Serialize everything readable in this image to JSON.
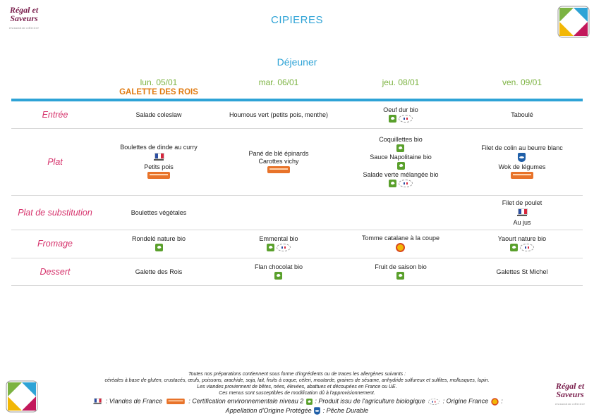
{
  "header": {
    "title": "CIPIERES",
    "meal": "Déjeuner",
    "logo_line1": "Régal et",
    "logo_line2": "Saveurs",
    "logo_tag": "restauration collective"
  },
  "days": [
    {
      "name": "lun. 05/01",
      "special": "GALETTE DES ROIS"
    },
    {
      "name": "mar. 06/01",
      "special": ""
    },
    {
      "name": "jeu. 08/01",
      "special": ""
    },
    {
      "name": "ven. 09/01",
      "special": ""
    }
  ],
  "categories": {
    "entree": "Entrée",
    "plat": "Plat",
    "substitution": "Plat de substitution",
    "fromage": "Fromage",
    "dessert": "Dessert"
  },
  "menu": {
    "entree": [
      [
        {
          "name": "Salade coleslaw",
          "labels": []
        }
      ],
      [
        {
          "name": "Houmous vert (petits pois, menthe)",
          "labels": []
        }
      ],
      [
        {
          "name": "Oeuf dur bio",
          "labels": [
            "bio-icon",
            "origine-france-icon"
          ]
        }
      ],
      [
        {
          "name": "Taboulé",
          "labels": []
        }
      ]
    ],
    "plat": [
      [
        {
          "name": "Boulettes de dinde au curry",
          "labels": [
            "viandes-france-icon"
          ]
        },
        {
          "name": "Petits pois",
          "labels": [
            "hve-icon"
          ]
        }
      ],
      [
        {
          "name": "Pané de blé épinards",
          "labels": []
        },
        {
          "name": "Carottes vichy",
          "labels": [
            "hve-icon"
          ]
        }
      ],
      [
        {
          "name": "Coquillettes bio",
          "labels": [
            "bio-icon"
          ]
        },
        {
          "name": "Sauce Napolitaine bio",
          "labels": [
            "bio-icon"
          ]
        },
        {
          "name": "Salade verte mélangée bio",
          "labels": [
            "bio-icon",
            "origine-france-icon"
          ]
        }
      ],
      [
        {
          "name": "Filet de colin au beurre blanc",
          "labels": [
            "peche-durable-icon"
          ]
        },
        {
          "name": "Wok de légumes",
          "labels": [
            "hve-icon"
          ]
        }
      ]
    ],
    "substitution": [
      [
        {
          "name": "Boulettes végétales",
          "labels": []
        }
      ],
      [],
      [],
      [
        {
          "name": "Filet de poulet",
          "labels": [
            "viandes-france-icon"
          ]
        },
        {
          "name": "Au jus",
          "labels": []
        }
      ]
    ],
    "fromage": [
      [
        {
          "name": "Rondelé nature bio",
          "labels": [
            "bio-icon"
          ]
        }
      ],
      [
        {
          "name": "Emmental bio",
          "labels": [
            "bio-icon",
            "origine-france-icon"
          ]
        }
      ],
      [
        {
          "name": "Tomme catalane à la coupe",
          "labels": [
            "aop-icon"
          ]
        }
      ],
      [
        {
          "name": "Yaourt nature bio",
          "labels": [
            "bio-icon",
            "origine-france-icon"
          ]
        }
      ]
    ],
    "dessert": [
      [
        {
          "name": "Galette des Rois",
          "labels": []
        }
      ],
      [
        {
          "name": "Flan chocolat bio",
          "labels": [
            "bio-icon"
          ]
        }
      ],
      [
        {
          "name": "Fruit de saison bio",
          "labels": [
            "bio-icon"
          ]
        }
      ],
      [
        {
          "name": "Galettes St Michel",
          "labels": []
        }
      ]
    ]
  },
  "footer": {
    "line1": "Toutes nos préparations contiennent sous forme d'ingrédients ou de traces les allergènes suivants :",
    "line2": "céréales à base de gluten, crustacés, œufs, poissons, arachide, soja, lait, fruits à coque, céleri, moutarde, graines de sésame, anhydride sulfureux et sulfites, mollusques, lupin.",
    "line3": "Les viandes proviennent de bêtes, nées, élevées, abattues et découpées en France ou UE.",
    "line4": "Ces menus sont susceptibles de modification dû à l'approvisionnement.",
    "legend": {
      "viandes": ": Viandes de France",
      "hve": ": Certification environnementale niveau 2",
      "bio": ": Produit issu de l'agriculture biologique",
      "france": ": Origine France",
      "aop": ":",
      "aop_text": "Appellation d'Origine Protégée",
      "peche": ": Pêche Durable"
    }
  }
}
